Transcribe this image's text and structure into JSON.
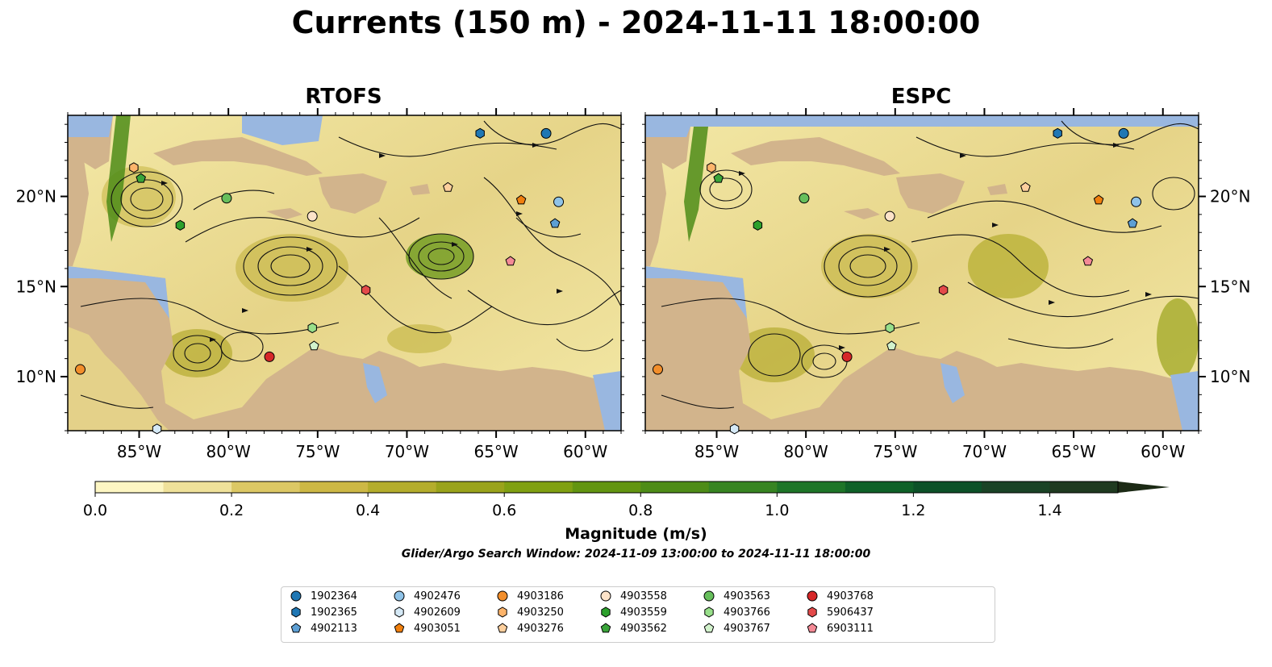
{
  "title": "Currents (150 m) - 2024-11-11 18:00:00",
  "panels": [
    {
      "title": "RTOFS"
    },
    {
      "title": "ESPC"
    }
  ],
  "chart_data": [
    {
      "type": "heatmap",
      "title": "RTOFS",
      "variable": "ocean current magnitude with streamlines",
      "x_ticks": [
        "85°W",
        "80°W",
        "75°W",
        "70°W",
        "65°W",
        "60°W"
      ],
      "x_tick_values": [
        -85,
        -80,
        -75,
        -70,
        -65,
        -60
      ],
      "y_ticks": [
        "20°N",
        "15°N",
        "10°N"
      ],
      "y_tick_values": [
        20,
        15,
        10
      ],
      "xlim": [
        -89,
        -58
      ],
      "ylim": [
        7,
        24.5
      ],
      "y_tick_side": "left",
      "colormap_range": [
        0,
        1.5
      ]
    },
    {
      "type": "heatmap",
      "title": "ESPC",
      "variable": "ocean current magnitude with streamlines",
      "x_ticks": [
        "85°W",
        "80°W",
        "75°W",
        "70°W",
        "65°W",
        "60°W"
      ],
      "x_tick_values": [
        -85,
        -80,
        -75,
        -70,
        -65,
        -60
      ],
      "y_ticks": [
        "20°N",
        "15°N",
        "10°N"
      ],
      "y_tick_values": [
        20,
        15,
        10
      ],
      "xlim": [
        -89,
        -58
      ],
      "ylim": [
        7,
        24.5
      ],
      "y_tick_side": "right",
      "colormap_range": [
        0,
        1.5
      ]
    }
  ],
  "colorbar": {
    "label": "Magnitude (m/s)",
    "ticks": [
      "0.0",
      "0.2",
      "0.4",
      "0.6",
      "0.8",
      "1.0",
      "1.2",
      "1.4"
    ],
    "tick_values": [
      0.0,
      0.2,
      0.4,
      0.6,
      0.8,
      1.0,
      1.2,
      1.4
    ],
    "range": [
      0,
      1.5
    ],
    "extend": "max",
    "colors": [
      "#fdf6c3",
      "#efe19a",
      "#dcc865",
      "#cdb845",
      "#b4ad2c",
      "#9aa31b",
      "#80a012",
      "#639511",
      "#4e8c17",
      "#378422",
      "#1e7528",
      "#0f6128",
      "#0c5128",
      "#1a4326",
      "#1f3a20",
      "#1c2a15"
    ]
  },
  "search_window": "Glider/Argo Search Window: 2024-11-09 13:00:00 to 2024-11-11 18:00:00",
  "floats": [
    {
      "id": "1902364",
      "marker": "circle",
      "color": "#1f77b4"
    },
    {
      "id": "1902365",
      "marker": "hexagon",
      "color": "#1f77b4"
    },
    {
      "id": "4902113",
      "marker": "pentagon",
      "color": "#5d9fd4"
    },
    {
      "id": "4902476",
      "marker": "circle",
      "color": "#8fc3e8"
    },
    {
      "id": "4902609",
      "marker": "hexagon",
      "color": "#d5e9f6"
    },
    {
      "id": "4903051",
      "marker": "pentagon",
      "color": "#f07f0e"
    },
    {
      "id": "4903186",
      "marker": "circle",
      "color": "#f28e2b"
    },
    {
      "id": "4903250",
      "marker": "hexagon",
      "color": "#fdb46b"
    },
    {
      "id": "4903276",
      "marker": "pentagon",
      "color": "#fdcf9d"
    },
    {
      "id": "4903558",
      "marker": "circle",
      "color": "#fde3c9"
    },
    {
      "id": "4903559",
      "marker": "hexagon",
      "color": "#2ca02c"
    },
    {
      "id": "4903562",
      "marker": "pentagon",
      "color": "#3aa43a"
    },
    {
      "id": "4903563",
      "marker": "circle",
      "color": "#67bf5c"
    },
    {
      "id": "4903766",
      "marker": "hexagon",
      "color": "#98df8a"
    },
    {
      "id": "4903767",
      "marker": "pentagon",
      "color": "#d2f2cc"
    },
    {
      "id": "4903768",
      "marker": "circle",
      "color": "#d62728"
    },
    {
      "id": "5906437",
      "marker": "hexagon",
      "color": "#e34a4a"
    },
    {
      "id": "6903111",
      "marker": "pentagon",
      "color": "#f48a96"
    }
  ],
  "float_positions": [
    {
      "id": "1902364",
      "lon": -62.2,
      "lat": 23.5
    },
    {
      "id": "1902365",
      "lon": -65.9,
      "lat": 23.5
    },
    {
      "id": "4902113",
      "lon": -61.7,
      "lat": 18.5
    },
    {
      "id": "4902476",
      "lon": -61.5,
      "lat": 19.7
    },
    {
      "id": "4902609",
      "lon": -84.0,
      "lat": 7.1
    },
    {
      "id": "4903051",
      "lon": -63.6,
      "lat": 19.8
    },
    {
      "id": "4903186",
      "lon": -88.3,
      "lat": 10.4
    },
    {
      "id": "4903250",
      "lon": -85.3,
      "lat": 21.6
    },
    {
      "id": "4903276",
      "lon": -67.7,
      "lat": 20.5
    },
    {
      "id": "4903558",
      "lon": -75.3,
      "lat": 18.9
    },
    {
      "id": "4903559",
      "lon": -82.7,
      "lat": 18.4
    },
    {
      "id": "4903562",
      "lon": -84.9,
      "lat": 21.0
    },
    {
      "id": "4903563",
      "lon": -80.1,
      "lat": 19.9
    },
    {
      "id": "4903766",
      "lon": -75.3,
      "lat": 12.7
    },
    {
      "id": "4903767",
      "lon": -75.2,
      "lat": 11.7
    },
    {
      "id": "4903768",
      "lon": -77.7,
      "lat": 11.1
    },
    {
      "id": "5906437",
      "lon": -72.3,
      "lat": 14.8
    },
    {
      "id": "6903111",
      "lon": -64.2,
      "lat": 16.4
    }
  ]
}
